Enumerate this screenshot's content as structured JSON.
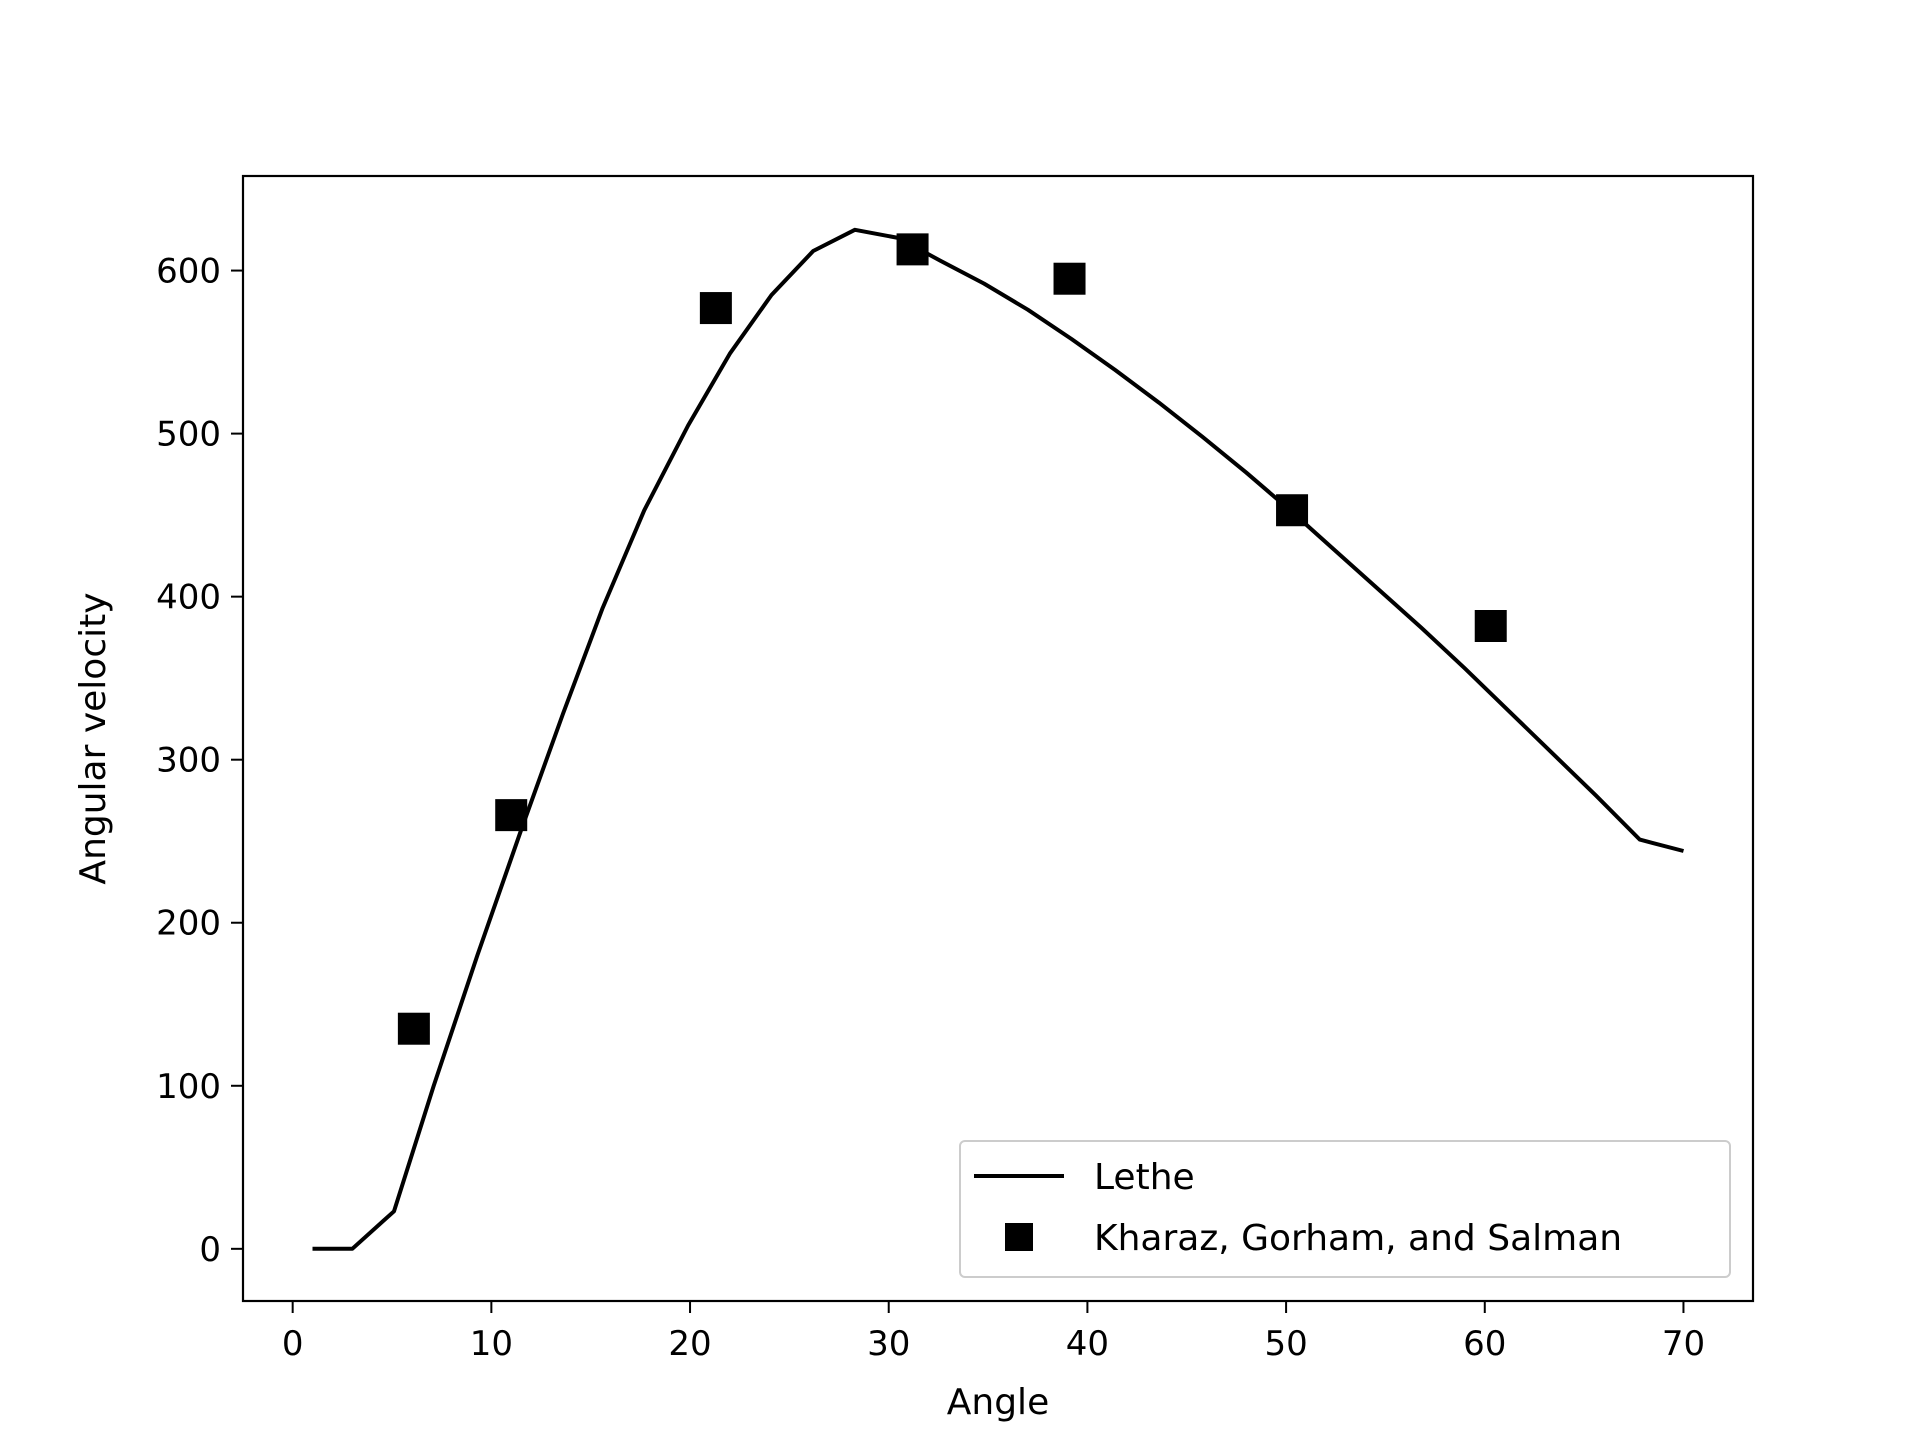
{
  "chart_data": {
    "type": "line",
    "xlabel": "Angle",
    "ylabel": "Angular velocity",
    "xlim": [
      -2.5,
      73.5
    ],
    "ylim": [
      -32,
      658
    ],
    "xticks": [
      0,
      10,
      20,
      30,
      40,
      50,
      60,
      70
    ],
    "yticks": [
      0,
      100,
      200,
      300,
      400,
      500,
      600
    ],
    "grid": false,
    "legend_position": "lower-right",
    "series": [
      {
        "name": "Lethe",
        "kind": "line",
        "color": "#000000",
        "x": [
          1,
          3,
          5.1,
          7.1,
          9.3,
          11.5,
          13.6,
          15.6,
          17.7,
          19.9,
          22,
          24.1,
          26.2,
          28.3,
          30.5,
          32.6,
          34.8,
          37,
          39.2,
          41.4,
          43.6,
          45.8,
          48,
          50.2,
          52.4,
          54.6,
          56.8,
          59,
          61.2,
          63.4,
          65.6,
          67.8,
          70
        ],
        "y": [
          0,
          0,
          23,
          100,
          180,
          257,
          328,
          393,
          453,
          505,
          549,
          585,
          612,
          625,
          620,
          606,
          592,
          576,
          558,
          539,
          519,
          498,
          476,
          453,
          429,
          405,
          381,
          356,
          330,
          304,
          278,
          251,
          244
        ]
      },
      {
        "name": "Kharaz, Gorham, and Salman",
        "kind": "scatter",
        "marker": "square",
        "color": "#000000",
        "x": [
          6.1,
          11,
          21.3,
          31.2,
          39.1,
          50.3,
          60.3
        ],
        "y": [
          135,
          266,
          577,
          613,
          595,
          453,
          382
        ]
      }
    ]
  }
}
